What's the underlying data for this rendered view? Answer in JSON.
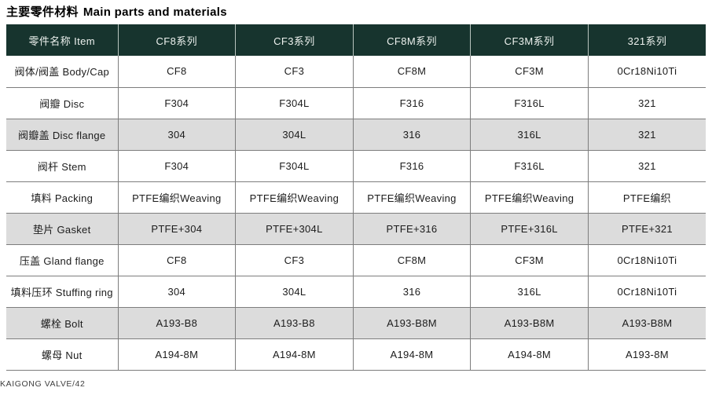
{
  "page": {
    "title_zh": "主要零件材料",
    "title_en": "Main parts and materials",
    "footer": "KAIGONG VALVE/42"
  },
  "colors": {
    "header_bg": "#17342e",
    "header_text": "#eef2ef",
    "shaded_row_bg": "#dcdcdc",
    "row_bg": "#ffffff",
    "border": "#7d7d7d",
    "title_text": "#000000",
    "footer_text": "#3f3f3f"
  },
  "table": {
    "columns": [
      "零件名称 Item",
      "CF8系列",
      "CF3系列",
      "CF8M系列",
      "CF3M系列",
      "321系列"
    ],
    "rows": [
      {
        "item": "阀体/阀盖 Body/Cap",
        "values": [
          "CF8",
          "CF3",
          "CF8M",
          "CF3M",
          "0Cr18Ni10Ti"
        ]
      },
      {
        "item": "阀瓣 Disc",
        "values": [
          "F304",
          "F304L",
          "F316",
          "F316L",
          "321"
        ]
      },
      {
        "item": "阀瓣盖 Disc flange",
        "values": [
          "304",
          "304L",
          "316",
          "316L",
          "321"
        ]
      },
      {
        "item": "阀杆 Stem",
        "values": [
          "F304",
          "F304L",
          "F316",
          "F316L",
          "321"
        ]
      },
      {
        "item": "填料 Packing",
        "values": [
          "PTFE编织Weaving",
          "PTFE编织Weaving",
          "PTFE编织Weaving",
          "PTFE编织Weaving",
          "PTFE编织"
        ]
      },
      {
        "item": "垫片 Gasket",
        "values": [
          "PTFE+304",
          "PTFE+304L",
          "PTFE+316",
          "PTFE+316L",
          "PTFE+321"
        ]
      },
      {
        "item": "压盖 Gland flange",
        "values": [
          "CF8",
          "CF3",
          "CF8M",
          "CF3M",
          "0Cr18Ni10Ti"
        ]
      },
      {
        "item": "填料压环 Stuffing ring",
        "values": [
          "304",
          "304L",
          "316",
          "316L",
          "0Cr18Ni10Ti"
        ]
      },
      {
        "item": "螺栓 Bolt",
        "values": [
          "A193-B8",
          "A193-B8",
          "A193-B8M",
          "A193-B8M",
          "A193-B8M"
        ]
      },
      {
        "item": "螺母 Nut",
        "values": [
          "A194-8M",
          "A194-8M",
          "A194-8M",
          "A194-8M",
          "A193-8M"
        ]
      }
    ]
  }
}
